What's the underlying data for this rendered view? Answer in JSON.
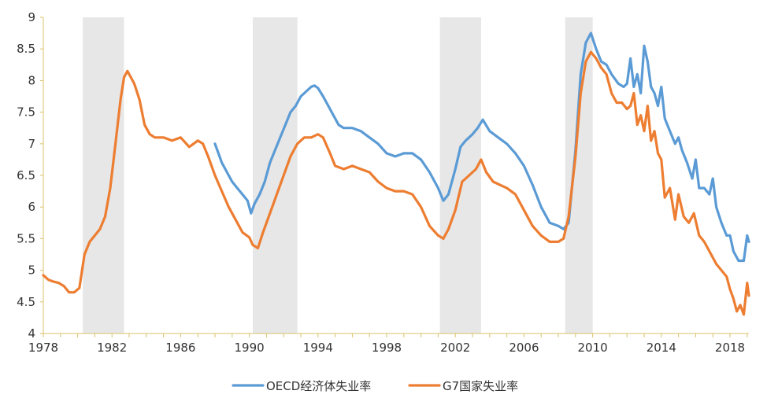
{
  "chart_data": {
    "type": "line",
    "title": "",
    "xlabel": "",
    "ylabel": "",
    "xlim": [
      1978,
      2019.1
    ],
    "ylim": [
      4,
      9
    ],
    "y_ticks": [
      "4",
      "4.5",
      "5",
      "5.5",
      "6",
      "6.5",
      "7",
      "7.5",
      "8",
      "8.5",
      "9"
    ],
    "x_ticks": [
      "1978",
      "1982",
      "1986",
      "1990",
      "1994",
      "1998",
      "2002",
      "2006",
      "2010",
      "2014",
      "2018"
    ],
    "grid": false,
    "legend_position": "bottom",
    "recession_bands": [
      [
        1980.3,
        1982.7
      ],
      [
        1990.2,
        1992.8
      ],
      [
        2001.1,
        2003.5
      ],
      [
        2008.4,
        2010.0
      ]
    ],
    "series": [
      {
        "name": "OECD经济体失业率",
        "color": "#5b9bd5",
        "x": [
          1988.0,
          1988.2,
          1988.4,
          1988.6,
          1988.8,
          1989.0,
          1989.3,
          1989.6,
          1989.9,
          1990.1,
          1990.3,
          1990.6,
          1990.9,
          1991.2,
          1991.5,
          1991.8,
          1992.1,
          1992.4,
          1992.7,
          1993.0,
          1993.2,
          1993.4,
          1993.6,
          1993.8,
          1994.0,
          1994.3,
          1994.6,
          1994.9,
          1995.2,
          1995.5,
          1996.0,
          1996.5,
          1997.0,
          1997.5,
          1998.0,
          1998.5,
          1999.0,
          1999.5,
          2000.0,
          2000.5,
          2001.0,
          2001.3,
          2001.6,
          2002.0,
          2002.3,
          2002.6,
          2003.0,
          2003.3,
          2003.6,
          2004.0,
          2004.5,
          2005.0,
          2005.5,
          2006.0,
          2006.5,
          2007.0,
          2007.5,
          2008.0,
          2008.3,
          2008.6,
          2009.0,
          2009.3,
          2009.6,
          2009.9,
          2010.2,
          2010.5,
          2010.8,
          2011.1,
          2011.5,
          2011.8,
          2012.0,
          2012.2,
          2012.4,
          2012.6,
          2012.8,
          2013.0,
          2013.2,
          2013.4,
          2013.6,
          2013.8,
          2014.0,
          2014.2,
          2014.5,
          2014.8,
          2015.0,
          2015.2,
          2015.5,
          2015.8,
          2016.0,
          2016.2,
          2016.5,
          2016.8,
          2017.0,
          2017.2,
          2017.5,
          2017.8,
          2018.0,
          2018.2,
          2018.5,
          2018.8,
          2019.0,
          2019.1
        ],
        "values": [
          7.0,
          6.85,
          6.7,
          6.6,
          6.5,
          6.4,
          6.3,
          6.2,
          6.1,
          5.9,
          6.05,
          6.2,
          6.4,
          6.7,
          6.9,
          7.1,
          7.3,
          7.5,
          7.6,
          7.75,
          7.8,
          7.85,
          7.9,
          7.92,
          7.88,
          7.75,
          7.6,
          7.45,
          7.3,
          7.25,
          7.25,
          7.2,
          7.1,
          7.0,
          6.85,
          6.8,
          6.85,
          6.85,
          6.75,
          6.55,
          6.3,
          6.1,
          6.2,
          6.6,
          6.95,
          7.05,
          7.15,
          7.25,
          7.38,
          7.2,
          7.1,
          7.0,
          6.85,
          6.65,
          6.35,
          6.0,
          5.75,
          5.7,
          5.65,
          5.75,
          6.9,
          8.1,
          8.6,
          8.75,
          8.5,
          8.3,
          8.25,
          8.1,
          7.95,
          7.9,
          7.95,
          8.35,
          7.9,
          8.1,
          7.8,
          8.55,
          8.3,
          7.9,
          7.8,
          7.6,
          7.9,
          7.4,
          7.2,
          7.0,
          7.1,
          6.9,
          6.7,
          6.45,
          6.75,
          6.3,
          6.3,
          6.2,
          6.45,
          6.0,
          5.75,
          5.55,
          5.55,
          5.3,
          5.15,
          5.15,
          5.55,
          5.45
        ]
      },
      {
        "name": "G7国家失业率",
        "color": "#ed7d31",
        "x": [
          1978.0,
          1978.3,
          1978.6,
          1978.9,
          1979.2,
          1979.5,
          1979.8,
          1980.1,
          1980.4,
          1980.7,
          1981.0,
          1981.3,
          1981.6,
          1981.9,
          1982.2,
          1982.5,
          1982.7,
          1982.9,
          1983.1,
          1983.3,
          1983.6,
          1983.9,
          1984.2,
          1984.5,
          1985.0,
          1985.5,
          1986.0,
          1986.5,
          1987.0,
          1987.3,
          1987.6,
          1988.0,
          1988.4,
          1988.8,
          1989.2,
          1989.6,
          1990.0,
          1990.2,
          1990.5,
          1990.8,
          1991.2,
          1991.6,
          1992.0,
          1992.4,
          1992.8,
          1993.2,
          1993.6,
          1994.0,
          1994.3,
          1994.7,
          1995.0,
          1995.5,
          1996.0,
          1996.5,
          1997.0,
          1997.5,
          1998.0,
          1998.5,
          1999.0,
          1999.5,
          2000.0,
          2000.5,
          2001.0,
          2001.3,
          2001.6,
          2002.0,
          2002.4,
          2002.8,
          2003.2,
          2003.5,
          2003.8,
          2004.2,
          2004.6,
          2005.0,
          2005.5,
          2006.0,
          2006.5,
          2007.0,
          2007.5,
          2008.0,
          2008.3,
          2008.6,
          2009.0,
          2009.3,
          2009.6,
          2009.9,
          2010.2,
          2010.5,
          2010.8,
          2011.1,
          2011.4,
          2011.7,
          2012.0,
          2012.2,
          2012.4,
          2012.6,
          2012.8,
          2013.0,
          2013.2,
          2013.4,
          2013.6,
          2013.8,
          2014.0,
          2014.2,
          2014.5,
          2014.8,
          2015.0,
          2015.3,
          2015.6,
          2015.9,
          2016.2,
          2016.5,
          2016.8,
          2017.0,
          2017.2,
          2017.5,
          2017.8,
          2018.0,
          2018.2,
          2018.4,
          2018.6,
          2018.8,
          2019.0,
          2019.1
        ],
        "values": [
          4.92,
          4.85,
          4.82,
          4.8,
          4.75,
          4.65,
          4.65,
          4.72,
          5.25,
          5.45,
          5.55,
          5.65,
          5.85,
          6.3,
          7.0,
          7.7,
          8.05,
          8.15,
          8.05,
          7.95,
          7.7,
          7.3,
          7.15,
          7.1,
          7.1,
          7.05,
          7.1,
          6.95,
          7.05,
          7.0,
          6.8,
          6.5,
          6.25,
          6.0,
          5.8,
          5.6,
          5.52,
          5.4,
          5.35,
          5.6,
          5.9,
          6.2,
          6.5,
          6.8,
          7.0,
          7.1,
          7.1,
          7.15,
          7.1,
          6.85,
          6.65,
          6.6,
          6.65,
          6.6,
          6.55,
          6.4,
          6.3,
          6.25,
          6.25,
          6.2,
          6.0,
          5.7,
          5.55,
          5.5,
          5.65,
          5.95,
          6.4,
          6.5,
          6.6,
          6.75,
          6.55,
          6.4,
          6.35,
          6.3,
          6.2,
          5.95,
          5.7,
          5.55,
          5.45,
          5.45,
          5.5,
          5.85,
          6.8,
          7.8,
          8.3,
          8.45,
          8.35,
          8.2,
          8.1,
          7.8,
          7.65,
          7.65,
          7.55,
          7.6,
          7.8,
          7.3,
          7.45,
          7.2,
          7.6,
          7.05,
          7.2,
          6.85,
          6.75,
          6.15,
          6.3,
          5.8,
          6.2,
          5.85,
          5.75,
          5.9,
          5.55,
          5.45,
          5.3,
          5.2,
          5.1,
          5.0,
          4.9,
          4.7,
          4.55,
          4.35,
          4.45,
          4.3,
          4.8,
          4.6
        ]
      }
    ]
  }
}
